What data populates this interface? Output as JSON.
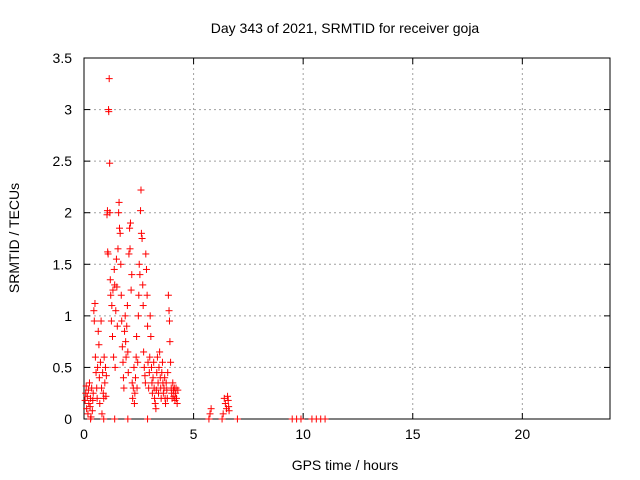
{
  "chart_data": {
    "type": "scatter",
    "title": "Day 343 of 2021, SRMTID for receiver goja",
    "xlabel": "GPS time / hours",
    "ylabel": "SRMTID / TECUs",
    "xlim": [
      0,
      24
    ],
    "ylim": [
      0,
      3.5
    ],
    "x_ticks": [
      0,
      5,
      10,
      15,
      20
    ],
    "y_ticks": [
      0,
      0.5,
      1,
      1.5,
      2,
      2.5,
      3,
      3.5
    ],
    "x_tick_labels": [
      "0",
      "5",
      "10",
      "15",
      "20"
    ],
    "y_tick_labels": [
      "0",
      "0.5",
      "1",
      "1.5",
      "2",
      "2.5",
      "3",
      "3.5"
    ],
    "grid": true,
    "marker": "+",
    "color": "#ff0000",
    "series": [
      {
        "name": "SRMTID",
        "points": [
          [
            0.05,
            0.18
          ],
          [
            0.08,
            0.25
          ],
          [
            0.1,
            0.32
          ],
          [
            0.12,
            0.1
          ],
          [
            0.15,
            0.22
          ],
          [
            0.18,
            0.05
          ],
          [
            0.2,
            0.28
          ],
          [
            0.22,
            0.15
          ],
          [
            0.25,
            0.35
          ],
          [
            0.28,
            0.12
          ],
          [
            0.3,
            0.2
          ],
          [
            0.32,
            0.02
          ],
          [
            0.35,
            0.3
          ],
          [
            0.38,
            0.08
          ],
          [
            0.4,
            0.18
          ],
          [
            0.42,
            0.25
          ],
          [
            0.45,
            1.05
          ],
          [
            0.47,
            0.95
          ],
          [
            0.5,
            1.12
          ],
          [
            0.52,
            0.6
          ],
          [
            0.55,
            0.45
          ],
          [
            0.58,
            0.3
          ],
          [
            0.6,
            0.2
          ],
          [
            0.62,
            0.5
          ],
          [
            0.65,
            0.85
          ],
          [
            0.68,
            0.72
          ],
          [
            0.7,
            0.4
          ],
          [
            0.72,
            0.15
          ],
          [
            0.75,
            0.55
          ],
          [
            0.78,
            0.95
          ],
          [
            0.8,
            0.3
          ],
          [
            0.82,
            0.05
          ],
          [
            0.85,
            0.45
          ],
          [
            0.88,
            0.25
          ],
          [
            0.9,
            0.2
          ],
          [
            0.92,
            0.6
          ],
          [
            0.95,
            0.35
          ],
          [
            0.98,
            0.5
          ],
          [
            1.0,
            0.22
          ],
          [
            1.02,
            0.42
          ],
          [
            1.05,
            1.98
          ],
          [
            1.07,
            2.02
          ],
          [
            1.08,
            1.62
          ],
          [
            1.1,
            1.6
          ],
          [
            1.12,
            3.0
          ],
          [
            1.13,
            2.98
          ],
          [
            1.15,
            3.3
          ],
          [
            1.17,
            2.48
          ],
          [
            1.18,
            2.0
          ],
          [
            1.2,
            1.35
          ],
          [
            1.22,
            1.2
          ],
          [
            1.25,
            0.95
          ],
          [
            1.27,
            1.1
          ],
          [
            1.3,
            0.8
          ],
          [
            1.32,
            1.25
          ],
          [
            1.35,
            0.6
          ],
          [
            1.38,
            1.45
          ],
          [
            1.4,
            1.3
          ],
          [
            1.42,
            0.5
          ],
          [
            1.45,
            1.05
          ],
          [
            1.48,
            1.55
          ],
          [
            1.5,
            1.28
          ],
          [
            1.52,
            0.9
          ],
          [
            1.55,
            1.65
          ],
          [
            1.58,
            2.0
          ],
          [
            1.6,
            2.1
          ],
          [
            1.62,
            1.85
          ],
          [
            1.65,
            1.8
          ],
          [
            1.68,
            1.5
          ],
          [
            1.7,
            1.2
          ],
          [
            1.72,
            0.95
          ],
          [
            1.75,
            0.7
          ],
          [
            1.78,
            0.55
          ],
          [
            1.8,
            0.4
          ],
          [
            1.82,
            0.3
          ],
          [
            1.85,
            0.85
          ],
          [
            1.88,
            1.0
          ],
          [
            1.9,
            0.75
          ],
          [
            1.92,
            0.6
          ],
          [
            1.95,
            0.9
          ],
          [
            1.98,
            1.1
          ],
          [
            2.0,
            0.65
          ],
          [
            2.02,
            0.45
          ],
          [
            2.05,
            1.6
          ],
          [
            2.08,
            1.85
          ],
          [
            2.1,
            1.65
          ],
          [
            2.12,
            1.9
          ],
          [
            2.15,
            1.25
          ],
          [
            2.18,
            1.4
          ],
          [
            2.2,
            0.35
          ],
          [
            2.22,
            0.2
          ],
          [
            2.25,
            0.3
          ],
          [
            2.28,
            0.5
          ],
          [
            2.3,
            0.15
          ],
          [
            2.32,
            0.25
          ],
          [
            2.35,
            0.4
          ],
          [
            2.38,
            0.6
          ],
          [
            2.4,
            0.8
          ],
          [
            2.42,
            0.3
          ],
          [
            2.45,
            0.55
          ],
          [
            2.48,
            1.0
          ],
          [
            2.5,
            1.2
          ],
          [
            2.52,
            1.5
          ],
          [
            2.55,
            1.4
          ],
          [
            2.58,
            2.02
          ],
          [
            2.6,
            2.22
          ],
          [
            2.62,
            1.8
          ],
          [
            2.65,
            1.75
          ],
          [
            2.68,
            1.3
          ],
          [
            2.7,
            1.1
          ],
          [
            2.72,
            0.65
          ],
          [
            2.75,
            0.5
          ],
          [
            2.78,
            0.42
          ],
          [
            2.8,
            0.35
          ],
          [
            2.82,
            1.6
          ],
          [
            2.85,
            1.45
          ],
          [
            2.88,
            1.2
          ],
          [
            2.9,
            0.9
          ],
          [
            2.92,
            0.55
          ],
          [
            2.95,
            0.3
          ],
          [
            2.98,
            0.45
          ],
          [
            3.0,
            0.6
          ],
          [
            3.02,
            1.0
          ],
          [
            3.05,
            0.8
          ],
          [
            3.08,
            0.5
          ],
          [
            3.1,
            0.35
          ],
          [
            3.12,
            0.25
          ],
          [
            3.15,
            0.4
          ],
          [
            3.18,
            0.55
          ],
          [
            3.2,
            0.3
          ],
          [
            3.22,
            0.2
          ],
          [
            3.25,
            0.15
          ],
          [
            3.28,
            0.1
          ],
          [
            3.3,
            0.28
          ],
          [
            3.32,
            0.45
          ],
          [
            3.35,
            0.6
          ],
          [
            3.38,
            0.35
          ],
          [
            3.4,
            0.25
          ],
          [
            3.42,
            0.5
          ],
          [
            3.45,
            0.65
          ],
          [
            3.48,
            0.4
          ],
          [
            3.5,
            0.3
          ],
          [
            3.52,
            0.2
          ],
          [
            3.55,
            0.45
          ],
          [
            3.58,
            0.55
          ],
          [
            3.6,
            0.35
          ],
          [
            3.62,
            0.25
          ],
          [
            3.65,
            0.3
          ],
          [
            3.68,
            0.4
          ],
          [
            3.7,
            0.2
          ],
          [
            3.72,
            0.15
          ],
          [
            3.75,
            0.35
          ],
          [
            3.78,
            0.28
          ],
          [
            3.8,
            0.2
          ],
          [
            3.82,
            0.45
          ],
          [
            3.85,
            1.2
          ],
          [
            3.88,
            1.05
          ],
          [
            3.9,
            0.95
          ],
          [
            3.92,
            0.75
          ],
          [
            3.95,
            0.55
          ],
          [
            3.98,
            0.3
          ],
          [
            4.0,
            0.25
          ],
          [
            4.02,
            0.2
          ],
          [
            4.05,
            0.35
          ],
          [
            4.08,
            0.28
          ],
          [
            4.1,
            0.22
          ],
          [
            4.12,
            0.3
          ],
          [
            4.15,
            0.18
          ],
          [
            4.18,
            0.25
          ],
          [
            4.2,
            0.3
          ],
          [
            4.22,
            0.2
          ],
          [
            4.25,
            0.15
          ],
          [
            4.28,
            0.28
          ],
          [
            5.7,
            0.0
          ],
          [
            5.75,
            0.05
          ],
          [
            5.8,
            0.1
          ],
          [
            6.3,
            0.0
          ],
          [
            6.35,
            0.05
          ],
          [
            6.4,
            0.2
          ],
          [
            6.45,
            0.15
          ],
          [
            6.5,
            0.1
          ],
          [
            6.55,
            0.22
          ],
          [
            6.58,
            0.18
          ],
          [
            6.6,
            0.12
          ],
          [
            6.62,
            0.08
          ],
          [
            7.0,
            0.0
          ],
          [
            9.5,
            0.0
          ],
          [
            9.7,
            0.0
          ],
          [
            9.9,
            0.0
          ],
          [
            10.4,
            0.0
          ],
          [
            10.6,
            0.0
          ],
          [
            10.8,
            0.0
          ],
          [
            11.0,
            0.0
          ],
          [
            0.3,
            0.0
          ],
          [
            0.9,
            0.0
          ],
          [
            1.4,
            0.0
          ],
          [
            2.0,
            0.0
          ],
          [
            2.9,
            0.0
          ]
        ]
      }
    ]
  }
}
